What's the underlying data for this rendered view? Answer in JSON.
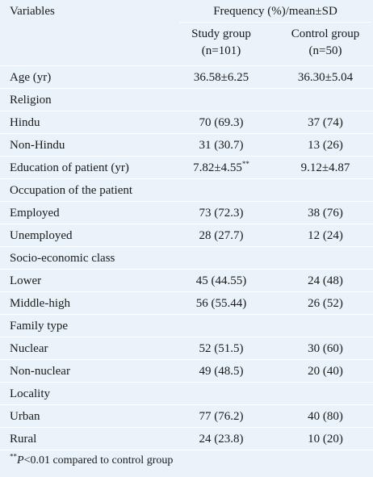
{
  "header": {
    "variables": "Variables",
    "span_title": "Frequency (%)/mean±SD",
    "col1_line1": "Study group",
    "col1_line2": "(n=101)",
    "col2_line1": "Control group",
    "col2_line2": "(n=50)"
  },
  "rows": [
    {
      "label": "Age (yr)",
      "study": "36.58±6.25",
      "control": "36.30±5.04"
    },
    {
      "label": "Religion",
      "study": "",
      "control": ""
    },
    {
      "label": "Hindu",
      "study": "70 (69.3)",
      "control": "37 (74)"
    },
    {
      "label": "Non-Hindu",
      "study": "31 (30.7)",
      "control": "13 (26)"
    },
    {
      "label": "Education of patient (yr)",
      "study": "7.82±4.55",
      "study_sup": "**",
      "control": "9.12±4.87"
    },
    {
      "label": "Occupation of the patient",
      "study": "",
      "control": ""
    },
    {
      "label": "Employed",
      "study": "73 (72.3)",
      "control": "38 (76)"
    },
    {
      "label": "Unemployed",
      "study": "28 (27.7)",
      "control": "12 (24)"
    },
    {
      "label": "Socio-economic class",
      "study": "",
      "control": ""
    },
    {
      "label": "Lower",
      "study": "45 (44.55)",
      "control": "24 (48)"
    },
    {
      "label": "Middle-high",
      "study": "56 (55.44)",
      "control": "26 (52)"
    },
    {
      "label": "Family type",
      "study": "",
      "control": ""
    },
    {
      "label": "Nuclear",
      "study": "52 (51.5)",
      "control": "30 (60)"
    },
    {
      "label": "Non-nuclear",
      "study": "49 (48.5)",
      "control": "20 (40)"
    },
    {
      "label": "Locality",
      "study": "",
      "control": ""
    },
    {
      "label": "Urban",
      "study": "77 (76.2)",
      "control": "40 (80)"
    },
    {
      "label": "Rural",
      "study": "24 (23.8)",
      "control": "10 (20)"
    }
  ],
  "footnote": {
    "marker": "**",
    "p": "P",
    "text": "<0.01 compared to control group"
  }
}
